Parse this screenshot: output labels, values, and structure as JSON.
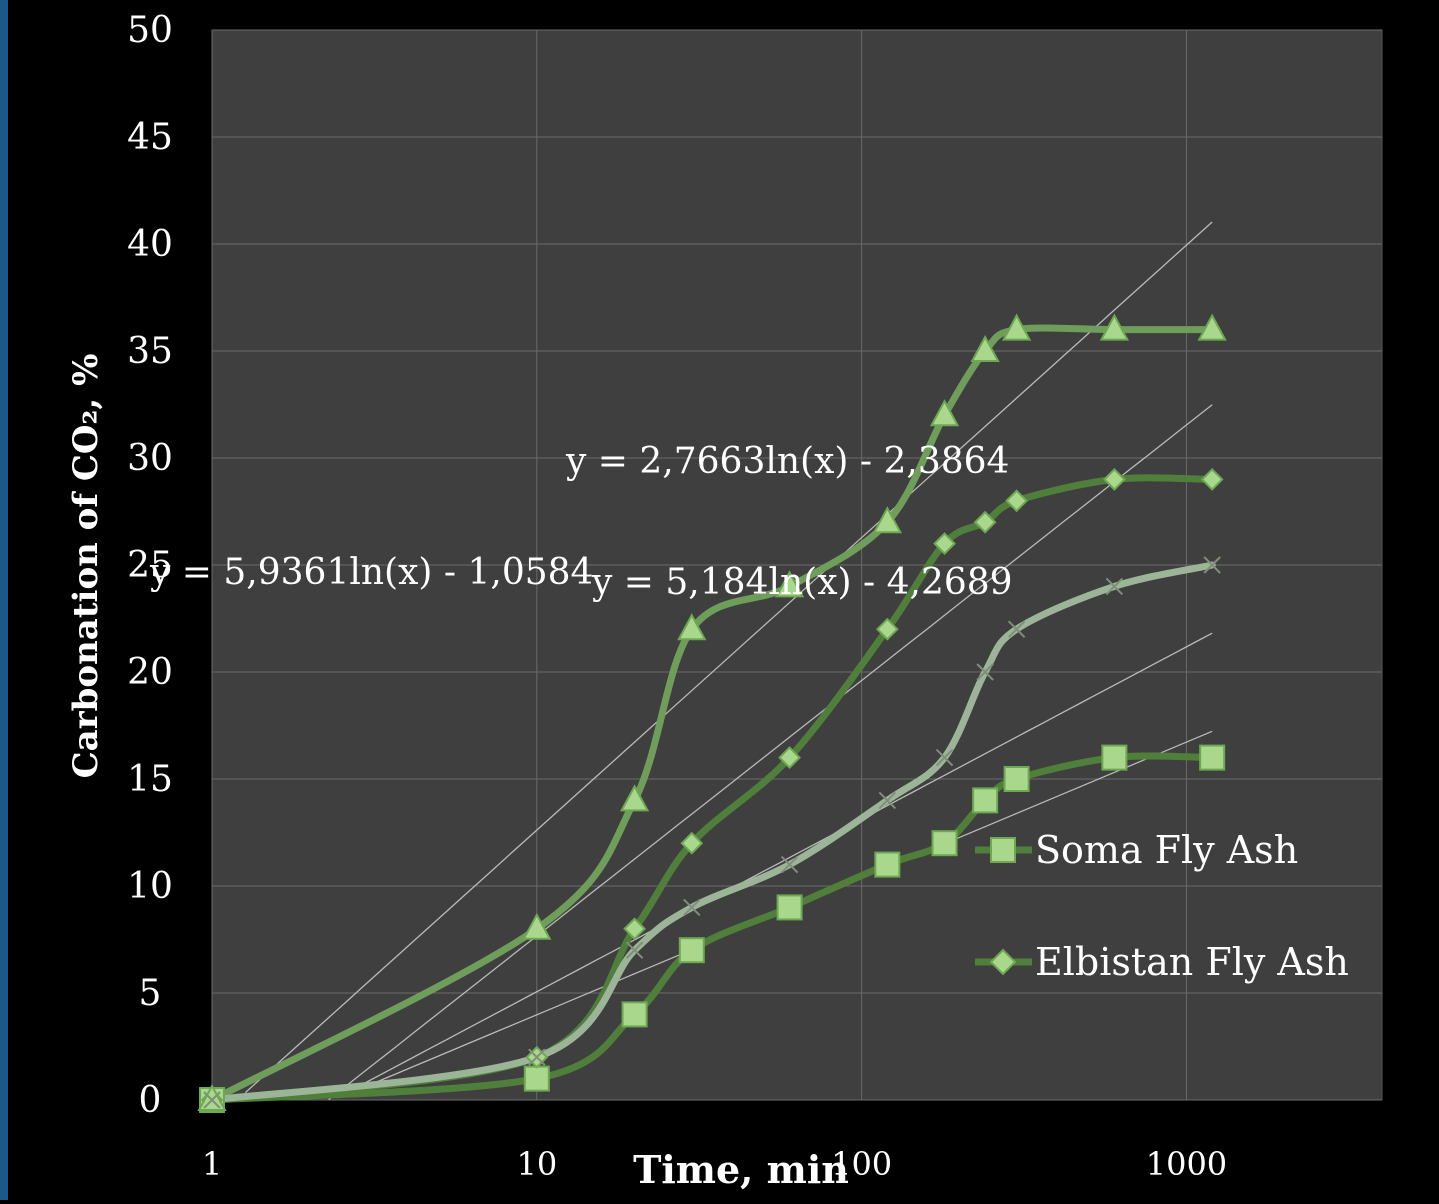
{
  "chart_data": {
    "type": "line",
    "xlabel": "Time, min",
    "ylabel": "Carbonation of CO₂, %",
    "x_scale": "log",
    "xlim": [
      1,
      4000
    ],
    "ylim": [
      0,
      50
    ],
    "x_ticks": [
      1,
      10,
      100,
      1000
    ],
    "x_tick_labels": [
      "1",
      "10",
      "100",
      "1000"
    ],
    "y_ticks": [
      0,
      5,
      10,
      15,
      20,
      25,
      30,
      35,
      40,
      45,
      50
    ],
    "y_tick_labels": [
      "0",
      "5",
      "10",
      "15",
      "20",
      "25",
      "30",
      "35",
      "40",
      "45",
      "50"
    ],
    "grid": true,
    "legend_position": "right-center",
    "colors": {
      "background": "#000000",
      "plot_area": "#3f3f3f",
      "grid": "#6b6b6b",
      "series_dark": "#4f7f3a",
      "series_mid": "#6e9e5a",
      "series_light": "#9cb497",
      "marker_fill": "#a9d88c",
      "marker_edge": "#7db95f",
      "trendline": "#c8c8c8",
      "text": "#ffffff"
    },
    "series": [
      {
        "marker": "square",
        "color": "#4f7f3a",
        "x": [
          1,
          10,
          20,
          30,
          60,
          120,
          180,
          240,
          300,
          600,
          1200
        ],
        "y": [
          0,
          1,
          4,
          7,
          9,
          11,
          12,
          14,
          15,
          16,
          16
        ]
      },
      {
        "marker": "diamond",
        "color": "#4f7f3a",
        "x": [
          1,
          10,
          20,
          30,
          60,
          120,
          180,
          240,
          300,
          600,
          1200
        ],
        "y": [
          0,
          2,
          8,
          12,
          16,
          22,
          26,
          27,
          28,
          29,
          29
        ]
      },
      {
        "marker": "triangle",
        "color": "#6e9e5a",
        "x": [
          1,
          10,
          20,
          30,
          60,
          120,
          180,
          240,
          300,
          600,
          1200
        ],
        "y": [
          0,
          8,
          14,
          22,
          24,
          27,
          32,
          35,
          36,
          36,
          36
        ]
      },
      {
        "marker": "x",
        "color": "#9cb497",
        "x": [
          1,
          10,
          20,
          30,
          60,
          120,
          180,
          240,
          300,
          600,
          1200
        ],
        "y": [
          0,
          2,
          7,
          9,
          11,
          14,
          16,
          20,
          22,
          24,
          25
        ]
      }
    ],
    "trendlines": [
      {
        "a": 5.9361,
        "b": -1.0584,
        "x_end": 1200
      },
      {
        "a": 5.184,
        "b": -4.2689,
        "x_end": 1200
      },
      {
        "a": 2.7663,
        "b": -2.3864,
        "x_end": 1200
      },
      {
        "a": 3.5,
        "b": -3.0,
        "x_end": 1200
      }
    ],
    "annotations": [
      {
        "text": "y = 2,7663ln(x) - 2,3864"
      },
      {
        "text": "y = 5,9361ln(x) - 1,0584"
      },
      {
        "text": "y = 5,184ln(x) - 4,2689"
      }
    ],
    "legend": [
      {
        "label": "Soma Fly Ash",
        "marker": "square"
      },
      {
        "label": "Elbistan Fly Ash",
        "marker": "diamond"
      }
    ]
  }
}
